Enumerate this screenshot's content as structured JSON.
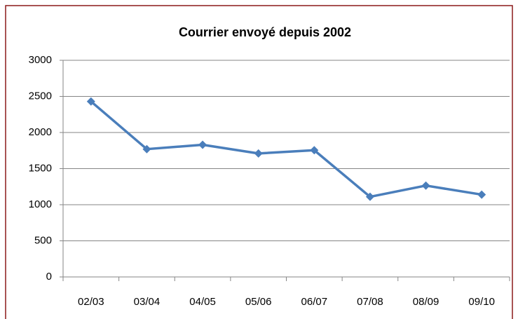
{
  "chart_data": {
    "type": "line",
    "title": "Courrier envoyé depuis 2002",
    "categories": [
      "02/03",
      "03/04",
      "04/05",
      "05/06",
      "06/07",
      "07/08",
      "08/09",
      "09/10"
    ],
    "series": [
      {
        "name": "Courrier",
        "color": "#4a7ebb",
        "values": [
          2430,
          1770,
          1830,
          1710,
          1755,
          1110,
          1265,
          1140
        ]
      }
    ],
    "ylim": [
      0,
      3000
    ],
    "yticks": [
      0,
      500,
      1000,
      1500,
      2000,
      2500,
      3000
    ],
    "grid": true
  }
}
